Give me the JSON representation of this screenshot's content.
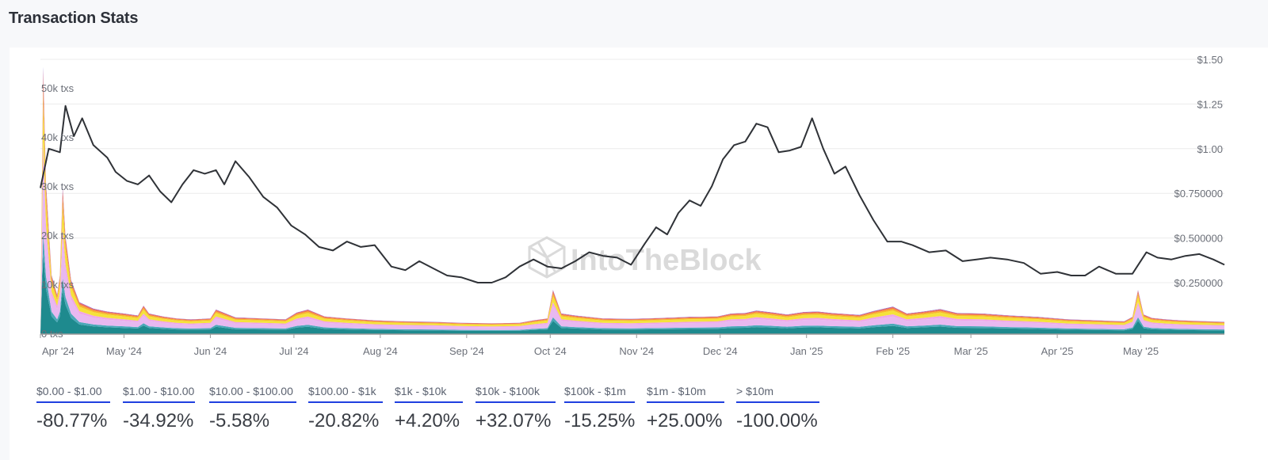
{
  "header": {
    "title": "Transaction Stats"
  },
  "watermark": "IntoTheBlock",
  "colors": {
    "price_line": "#2f3237",
    "grid": "#ececec",
    "underline": "#1f3fe0",
    "bands": [
      "#1e8a8e",
      "#4aa8b8",
      "#e8b8f0",
      "#f0a6e6",
      "#f5e23a",
      "#f7b82a",
      "#f27a4a",
      "#d94a7a",
      "#6a5ad0"
    ]
  },
  "legend": [
    {
      "range": "$0.00 - $1.00",
      "change": "-80.77%"
    },
    {
      "range": "$1.00 - $10.00",
      "change": "-34.92%"
    },
    {
      "range": "$10.00 - $100.00",
      "change": "-5.58%"
    },
    {
      "range": "$100.00 - $1k",
      "change": "-20.82%"
    },
    {
      "range": "$1k - $10k",
      "change": "+4.20%"
    },
    {
      "range": "$10k - $100k",
      "change": "+32.07%"
    },
    {
      "range": "$100k - $1m",
      "change": "-15.25%"
    },
    {
      "range": "$1m - $10m",
      "change": "+25.00%"
    },
    {
      "range": "> $10m",
      "change": "-100.00%"
    }
  ],
  "chart_data": {
    "type": "area",
    "x_ticks": [
      "Apr '24",
      "May '24",
      "Jun '24",
      "Jul '24",
      "Aug '24",
      "Sep '24",
      "Oct '24",
      "Nov '24",
      "Dec '24",
      "Jan '25",
      "Feb '25",
      "Mar '25",
      "Apr '25",
      "May '25"
    ],
    "left_axis": {
      "ticks": [
        "0 txs",
        "10k txs",
        "20k txs",
        "30k txs",
        "40k txs",
        "50k txs"
      ],
      "ylim": [
        0,
        56000
      ]
    },
    "right_axis": {
      "ticks": [
        "$0.250000",
        "$0.500000",
        "$0.750000",
        "$1.00",
        "$1.25",
        "$1.50"
      ],
      "ylim": [
        0.25,
        1.5
      ]
    },
    "price_series": {
      "dates": [
        "2024-04-01",
        "2024-04-04",
        "2024-04-08",
        "2024-04-10",
        "2024-04-13",
        "2024-04-16",
        "2024-04-20",
        "2024-04-25",
        "2024-04-28",
        "2024-05-02",
        "2024-05-06",
        "2024-05-10",
        "2024-05-14",
        "2024-05-18",
        "2024-05-22",
        "2024-05-26",
        "2024-05-30",
        "2024-06-03",
        "2024-06-06",
        "2024-06-10",
        "2024-06-15",
        "2024-06-20",
        "2024-06-25",
        "2024-06-30",
        "2024-07-05",
        "2024-07-10",
        "2024-07-15",
        "2024-07-20",
        "2024-07-25",
        "2024-07-30",
        "2024-08-05",
        "2024-08-10",
        "2024-08-15",
        "2024-08-20",
        "2024-08-25",
        "2024-08-30",
        "2024-09-05",
        "2024-09-10",
        "2024-09-15",
        "2024-09-20",
        "2024-09-25",
        "2024-09-30",
        "2024-10-05",
        "2024-10-10",
        "2024-10-15",
        "2024-10-20",
        "2024-10-25",
        "2024-10-30",
        "2024-11-04",
        "2024-11-08",
        "2024-11-12",
        "2024-11-16",
        "2024-11-20",
        "2024-11-24",
        "2024-11-28",
        "2024-12-02",
        "2024-12-06",
        "2024-12-10",
        "2024-12-14",
        "2024-12-18",
        "2024-12-22",
        "2024-12-26",
        "2024-12-30",
        "2025-01-03",
        "2025-01-07",
        "2025-01-11",
        "2025-01-15",
        "2025-01-20",
        "2025-01-25",
        "2025-01-30",
        "2025-02-04",
        "2025-02-08",
        "2025-02-14",
        "2025-02-20",
        "2025-02-26",
        "2025-03-03",
        "2025-03-08",
        "2025-03-14",
        "2025-03-20",
        "2025-03-26",
        "2025-04-01",
        "2025-04-06",
        "2025-04-11",
        "2025-04-16",
        "2025-04-22",
        "2025-04-28",
        "2025-05-03",
        "2025-05-07",
        "2025-05-12",
        "2025-05-17",
        "2025-05-22",
        "2025-05-27",
        "2025-05-31"
      ],
      "values": [
        0.78,
        1.0,
        0.98,
        1.24,
        1.07,
        1.17,
        1.02,
        0.95,
        0.87,
        0.82,
        0.8,
        0.85,
        0.76,
        0.7,
        0.8,
        0.88,
        0.86,
        0.88,
        0.8,
        0.93,
        0.84,
        0.73,
        0.67,
        0.57,
        0.52,
        0.45,
        0.43,
        0.48,
        0.45,
        0.46,
        0.34,
        0.32,
        0.37,
        0.33,
        0.29,
        0.28,
        0.25,
        0.25,
        0.28,
        0.34,
        0.38,
        0.34,
        0.33,
        0.37,
        0.42,
        0.4,
        0.39,
        0.35,
        0.47,
        0.56,
        0.52,
        0.64,
        0.71,
        0.68,
        0.79,
        0.94,
        1.02,
        1.04,
        1.14,
        1.12,
        0.98,
        0.99,
        1.01,
        1.17,
        1.0,
        0.86,
        0.9,
        0.74,
        0.6,
        0.48,
        0.48,
        0.46,
        0.42,
        0.43,
        0.37,
        0.38,
        0.39,
        0.38,
        0.36,
        0.3,
        0.31,
        0.29,
        0.29,
        0.34,
        0.3,
        0.3,
        0.42,
        0.39,
        0.38,
        0.4,
        0.41,
        0.38,
        0.35
      ]
    },
    "tx_series": {
      "dates": [
        "2024-04-01",
        "2024-04-02",
        "2024-04-03",
        "2024-04-05",
        "2024-04-07",
        "2024-04-08",
        "2024-04-09",
        "2024-04-10",
        "2024-04-12",
        "2024-04-15",
        "2024-04-20",
        "2024-04-25",
        "2024-05-01",
        "2024-05-06",
        "2024-05-08",
        "2024-05-10",
        "2024-05-15",
        "2024-05-20",
        "2024-05-25",
        "2024-06-01",
        "2024-06-03",
        "2024-06-10",
        "2024-06-20",
        "2024-06-28",
        "2024-07-02",
        "2024-07-06",
        "2024-07-12",
        "2024-07-20",
        "2024-07-30",
        "2024-08-10",
        "2024-08-20",
        "2024-08-30",
        "2024-09-10",
        "2024-09-20",
        "2024-09-25",
        "2024-09-30",
        "2024-10-02",
        "2024-10-05",
        "2024-10-10",
        "2024-10-20",
        "2024-10-30",
        "2024-11-10",
        "2024-11-20",
        "2024-11-30",
        "2024-12-05",
        "2024-12-10",
        "2024-12-14",
        "2024-12-20",
        "2024-12-25",
        "2024-12-31",
        "2025-01-05",
        "2025-01-10",
        "2025-01-15",
        "2025-01-20",
        "2025-01-25",
        "2025-02-01",
        "2025-02-06",
        "2025-02-12",
        "2025-02-18",
        "2025-02-24",
        "2025-03-05",
        "2025-03-15",
        "2025-03-25",
        "2025-04-05",
        "2025-04-15",
        "2025-04-25",
        "2025-04-28",
        "2025-04-30",
        "2025-05-02",
        "2025-05-05",
        "2025-05-10",
        "2025-05-15",
        "2025-05-20",
        "2025-05-25",
        "2025-05-31"
      ],
      "values": [
        1500,
        54500,
        31000,
        12000,
        8000,
        12000,
        30000,
        20000,
        11000,
        6500,
        5200,
        4600,
        4200,
        3800,
        5800,
        4200,
        3600,
        3200,
        3000,
        3200,
        5000,
        3400,
        3200,
        3000,
        4400,
        5000,
        3600,
        3200,
        2800,
        2600,
        2500,
        2300,
        2200,
        2300,
        2800,
        3200,
        9000,
        4200,
        3800,
        3200,
        3100,
        3300,
        3500,
        3600,
        4200,
        4300,
        4800,
        4400,
        4000,
        4500,
        4600,
        4300,
        4100,
        3900,
        4700,
        5600,
        4200,
        4600,
        5100,
        4300,
        4200,
        3800,
        3500,
        3000,
        2800,
        2600,
        3500,
        9000,
        4000,
        3300,
        3000,
        2800,
        2700,
        2600,
        2500
      ]
    }
  }
}
